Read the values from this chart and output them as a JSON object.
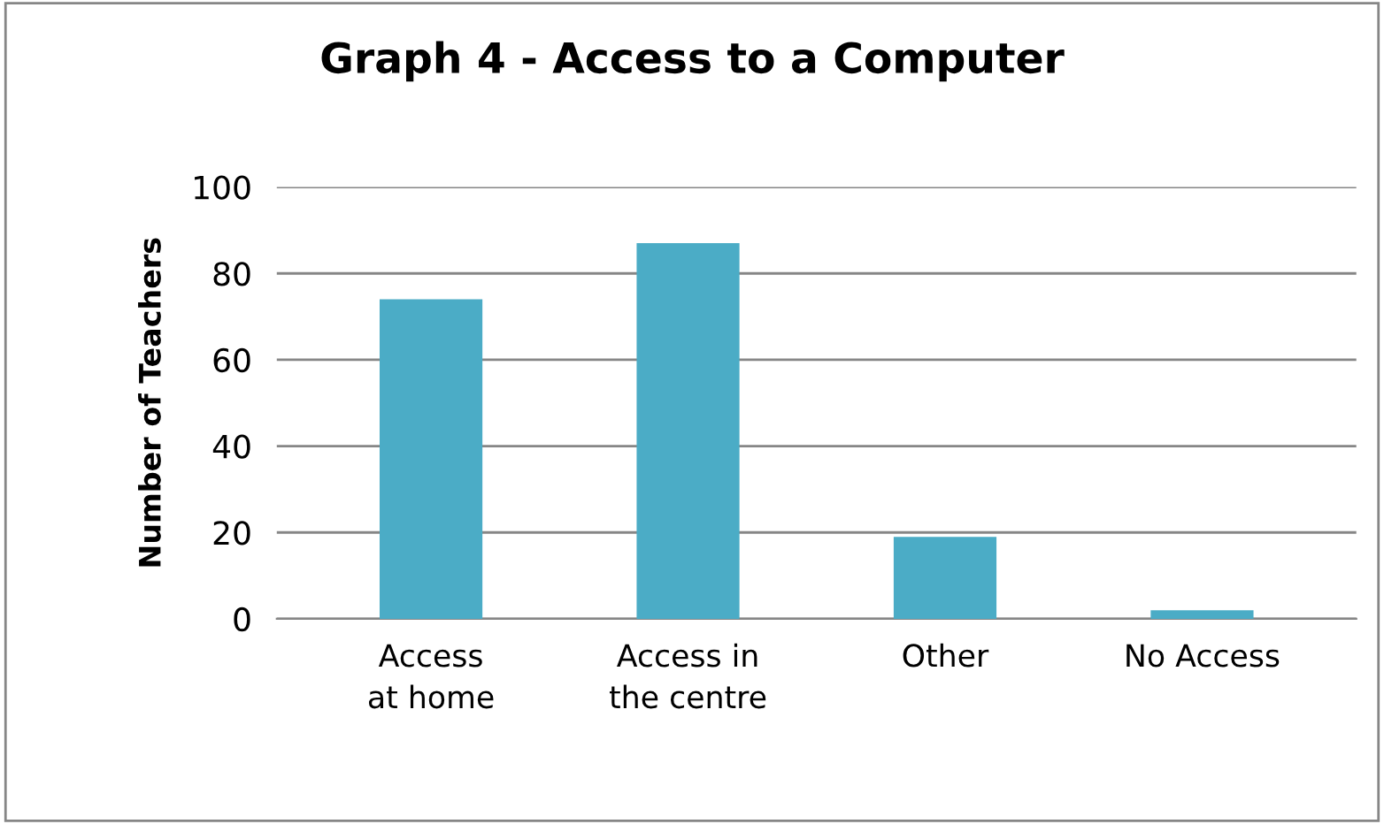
{
  "chart_data": {
    "type": "bar",
    "title": "Graph 4 - Access to a Computer",
    "ylabel": "Number of Teachers",
    "categories": [
      "Access at home",
      "Access in the centre",
      "Other",
      "No Access"
    ],
    "values": [
      74,
      87,
      19,
      2
    ],
    "color": "#4bacc6",
    "ylim": [
      0,
      100
    ],
    "yticks": [
      0,
      20,
      40,
      60,
      80,
      100
    ],
    "grid": "y"
  }
}
